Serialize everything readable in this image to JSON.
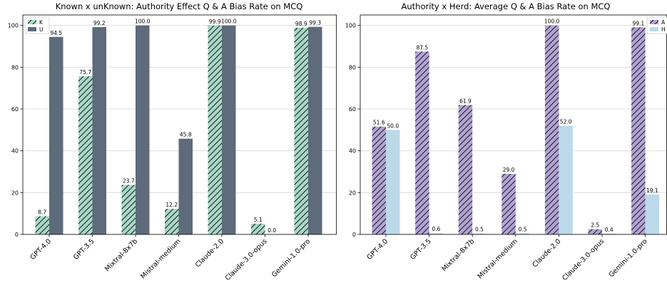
{
  "chart_data": [
    {
      "type": "bar",
      "title": "Known x unKnown: Authority Effect Q & A Bias Rate on MCQ",
      "xlabel": "",
      "ylabel": "",
      "ylim": [
        0,
        105
      ],
      "yticks": [
        0,
        20,
        40,
        60,
        80,
        100
      ],
      "grid": true,
      "legend": "top-left",
      "categories": [
        "GPT-4.0",
        "GPT-3.5",
        "Mixtral-8x7b",
        "Mistral-medium",
        "Claude-2.0",
        "Claude-3.0-opus",
        "Gemini-1.0-pro"
      ],
      "series": [
        {
          "name": "K",
          "values": [
            8.7,
            75.7,
            23.7,
            12.2,
            99.9,
            5.1,
            98.9
          ],
          "color": "#a8d8c8",
          "hatch": true
        },
        {
          "name": "U",
          "values": [
            94.5,
            99.2,
            100.0,
            45.8,
            100.0,
            0.0,
            99.3
          ],
          "color": "#5d6b7a",
          "hatch": false
        }
      ]
    },
    {
      "type": "bar",
      "title": "Authority x Herd: Average Q & A Bias Rate on MCQ",
      "xlabel": "",
      "ylabel": "",
      "ylim": [
        0,
        105
      ],
      "yticks": [
        0,
        20,
        40,
        60,
        80,
        100
      ],
      "grid": true,
      "legend": "top-right",
      "categories": [
        "GPT-4.0",
        "GPT-3.5",
        "Mixtral-8x7b",
        "Mistral-medium",
        "Claude-2.0",
        "Claude-3.0-opus",
        "Gemini-1.0-pro"
      ],
      "series": [
        {
          "name": "A",
          "values": [
            51.6,
            87.5,
            61.9,
            29.0,
            100.0,
            2.5,
            99.1
          ],
          "color": "#b3a3d6",
          "hatch": true
        },
        {
          "name": "H",
          "values": [
            50.0,
            0.6,
            0.5,
            0.5,
            52.0,
            0.4,
            19.1
          ],
          "color": "#bcd9ea",
          "hatch": false
        }
      ]
    }
  ]
}
